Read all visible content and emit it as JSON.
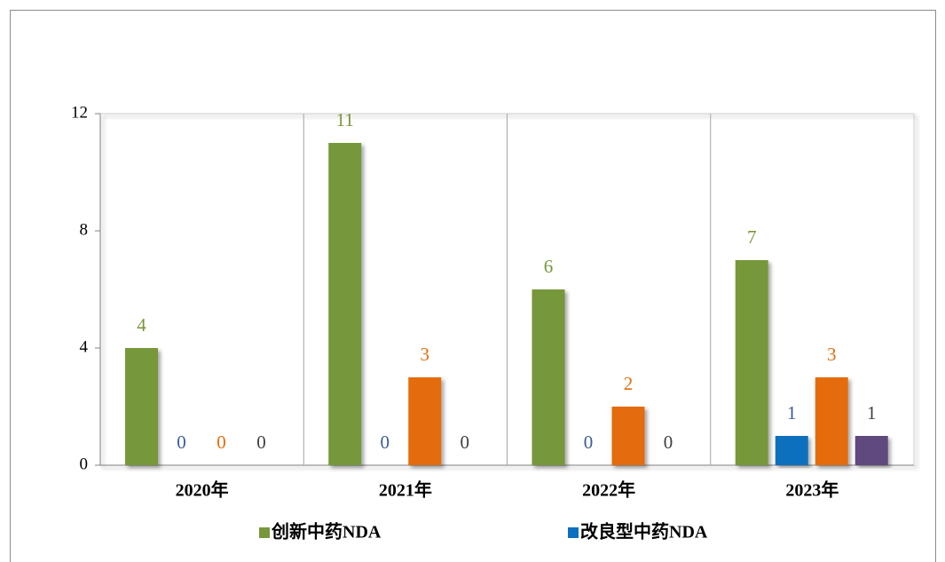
{
  "chart_data": {
    "type": "bar",
    "categories": [
      "2020年",
      "2021年",
      "2022年",
      "2023年"
    ],
    "series": [
      {
        "name": "创新中药NDA",
        "color": "#77973b",
        "label_color": "#77973b",
        "values": [
          4,
          11,
          6,
          7
        ]
      },
      {
        "name": "改良型中药NDA",
        "color": "#0d6fbf",
        "label_color": "#3b5c97",
        "values": [
          0,
          0,
          0,
          1
        ]
      },
      {
        "color": "#e46c0a",
        "label_color": "#e46c0a",
        "values": [
          0,
          3,
          2,
          3
        ]
      },
      {
        "color": "#604a7b",
        "label_color": "#404040",
        "values": [
          0,
          0,
          0,
          1
        ]
      }
    ],
    "ylim": [
      0,
      12
    ],
    "yticks": [
      0,
      4,
      8,
      12
    ]
  }
}
